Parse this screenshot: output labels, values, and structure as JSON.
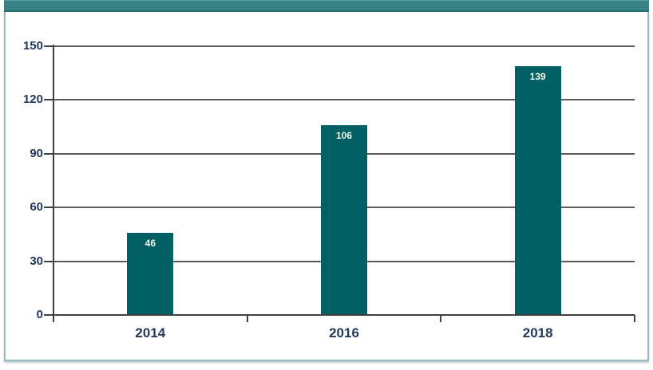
{
  "chart_data": {
    "type": "bar",
    "title": "",
    "xlabel": "",
    "ylabel": "",
    "categories": [
      "2014",
      "2016",
      "2018"
    ],
    "values": [
      46,
      106,
      139
    ],
    "bar_labels": [
      "46",
      "106",
      "139"
    ],
    "ylim": [
      0,
      150
    ],
    "yticks": [
      0,
      30,
      60,
      90,
      120,
      150
    ],
    "grid": true,
    "legend_position": "none"
  },
  "colors": {
    "bar_fill": "#006064",
    "header_bar": "#378387",
    "frame_border": "#93bdc3",
    "grid_line": "#595a5c",
    "axis_line": "#3f4040",
    "tick_label": "#21395f",
    "bar_label": "#f6f3ea"
  }
}
